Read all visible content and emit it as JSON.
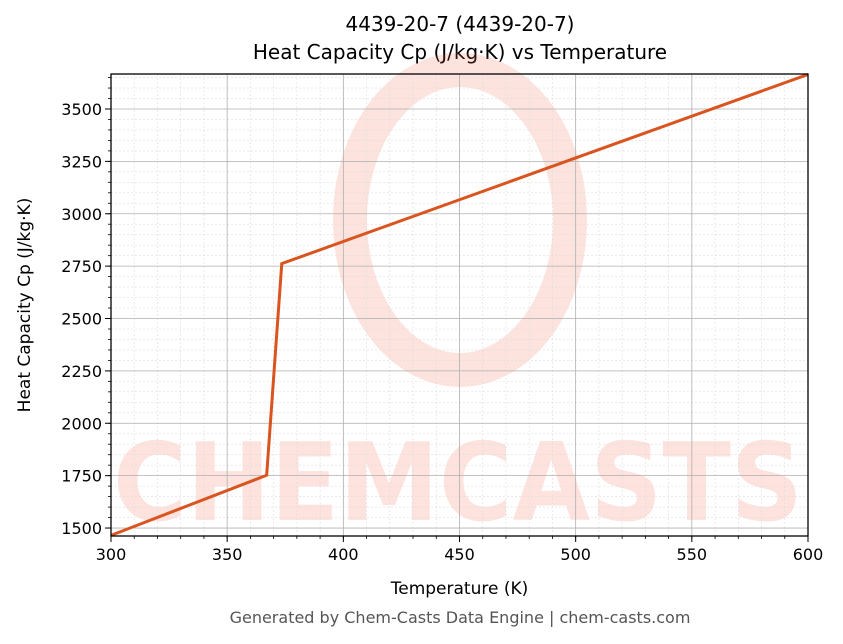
{
  "chart_data": {
    "type": "line",
    "title": "4439-20-7 (4439-20-7)",
    "subtitle": "Heat Capacity Cp (J/kg·K) vs Temperature",
    "xlabel": "Temperature (K)",
    "ylabel": "Heat Capacity Cp (J/kg·K)",
    "xlim": [
      300,
      600
    ],
    "ylim": [
      1462,
      3667
    ],
    "x_ticks": [
      300,
      350,
      400,
      450,
      500,
      550,
      600
    ],
    "y_ticks": [
      1500,
      1750,
      2000,
      2250,
      2500,
      2750,
      3000,
      3250,
      3500
    ],
    "grid": true,
    "legend": null,
    "series": [
      {
        "name": "Cp",
        "color": "#d9541e",
        "x": [
          300,
          367,
          373.5,
          600
        ],
        "y": [
          1465,
          1752,
          2762,
          3665
        ]
      }
    ],
    "watermark": "CHEMCASTS",
    "footer": "Generated by Chem-Casts Data Engine | chem-casts.com"
  }
}
